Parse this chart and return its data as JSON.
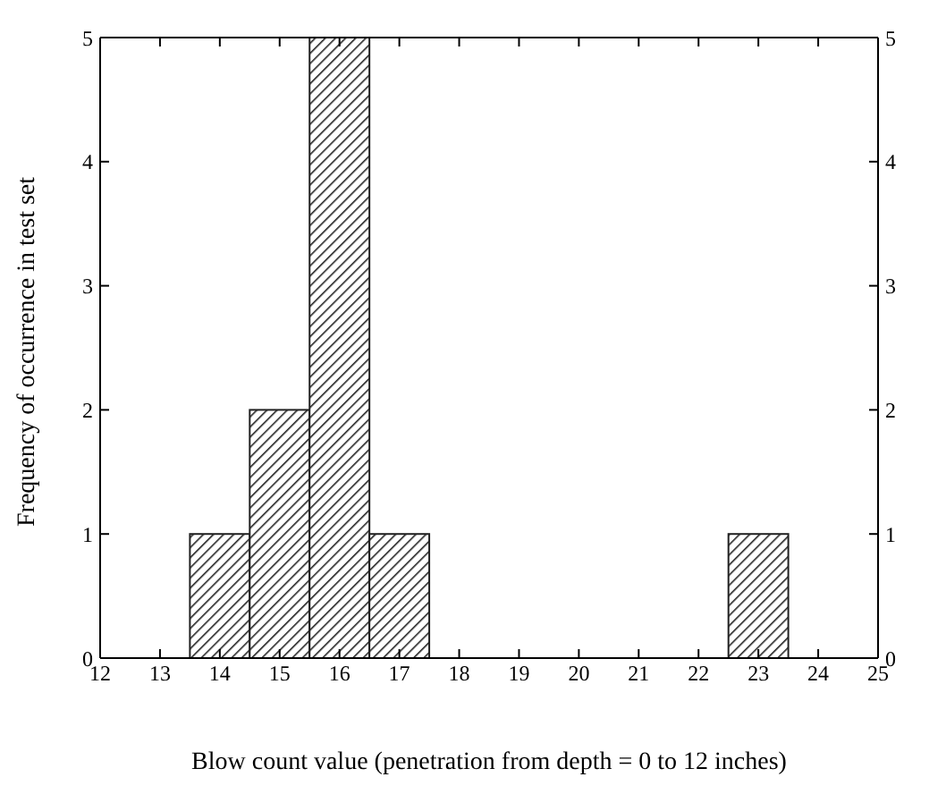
{
  "chart_data": {
    "type": "bar",
    "xlabel": "Blow count value (penetration from depth = 0 to 12 inches)",
    "ylabel": "Frequency of occurrence in test set",
    "x": [
      14,
      15,
      16,
      17,
      23
    ],
    "values": [
      1,
      2,
      5,
      1,
      1
    ],
    "color": "#222222",
    "xlim": [
      12,
      25
    ],
    "xticks": [
      12,
      13,
      14,
      15,
      16,
      17,
      18,
      19,
      20,
      21,
      22,
      23,
      24,
      25
    ],
    "ylim": [
      0,
      5
    ],
    "yticks": [
      0,
      1,
      2,
      3,
      4,
      5
    ],
    "y2lim": [
      0,
      5
    ],
    "y2ticks": [
      0,
      1,
      2,
      3,
      4,
      5
    ],
    "grid": false,
    "legend": false
  }
}
